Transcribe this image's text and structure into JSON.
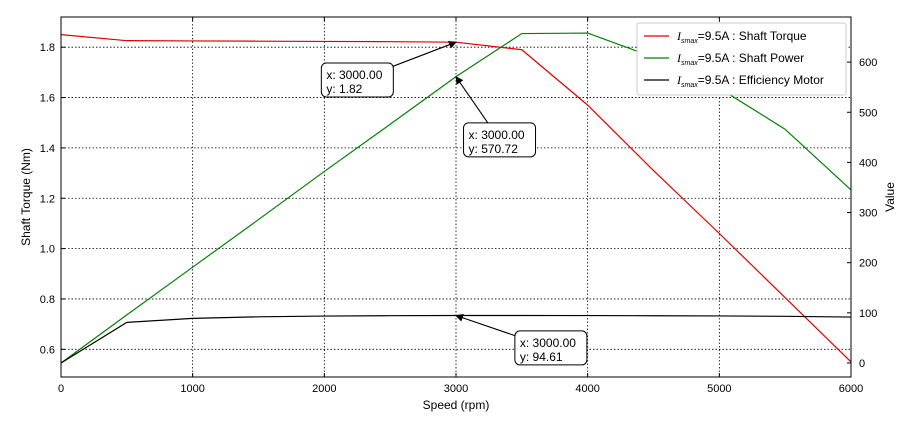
{
  "chart_data": {
    "type": "line",
    "xlabel": "Speed  (rpm)",
    "ylabel_left": "Shaft Torque  (Nm)",
    "ylabel_right": "Value",
    "xlim": [
      0,
      6000
    ],
    "ylim_left": [
      0.49,
      1.92
    ],
    "ylim_right": [
      -28,
      690
    ],
    "x_ticks": [
      0,
      1000,
      2000,
      3000,
      4000,
      5000,
      6000
    ],
    "y_ticks_left": [
      0.6,
      0.8,
      1.0,
      1.2,
      1.4,
      1.6,
      1.8
    ],
    "y_ticks_right": [
      0,
      100,
      200,
      300,
      400,
      500,
      600
    ],
    "grid": true,
    "grid_style": "dotted",
    "legend_position": "top-right",
    "series": [
      {
        "name_math": "I",
        "name_sub": "smax",
        "name_rest": "=9.5A : Shaft Torque",
        "axis": "left",
        "color": "#e00000",
        "x": [
          0,
          500,
          1000,
          1500,
          2000,
          2500,
          3000,
          3500,
          4000,
          4500,
          5000,
          5500,
          6000
        ],
        "y": [
          1.85,
          1.826,
          1.825,
          1.824,
          1.823,
          1.822,
          1.82,
          1.79,
          1.57,
          1.31,
          1.06,
          0.805,
          0.55
        ]
      },
      {
        "name_math": "I",
        "name_sub": "smax",
        "name_rest": "=9.5A : Shaft Power",
        "axis": "right",
        "color": "#008000",
        "x": [
          0,
          500,
          1000,
          1500,
          2000,
          2500,
          3000,
          3500,
          4000,
          4500,
          5000,
          5500,
          6000
        ],
        "y": [
          0,
          96,
          191,
          286,
          382,
          476,
          571,
          657,
          658,
          610,
          548,
          466,
          345
        ]
      },
      {
        "name_math": "I",
        "name_sub": "smax",
        "name_rest": "=9.5A : Efficiency Motor",
        "axis": "right",
        "color": "#000000",
        "x": [
          0,
          500,
          1000,
          1500,
          2000,
          2500,
          3000,
          3500,
          4000,
          4500,
          5000,
          5500,
          6000
        ],
        "y": [
          0,
          81,
          89,
          92,
          93.5,
          94.3,
          94.61,
          94.6,
          94.5,
          94.2,
          93.8,
          93.0,
          91.5
        ]
      }
    ],
    "annotations": [
      {
        "x": 3000,
        "y": 1.82,
        "axis": "left",
        "line1": "x: 3000.00",
        "line2": "y: 1.82",
        "box_at_x": 2000,
        "box_at_y": 1.65
      },
      {
        "x": 3000,
        "y": 570.72,
        "axis": "right",
        "line1": "x: 3000.00",
        "line2": "y: 570.72",
        "box_at_x": 3080,
        "box_at_y": 435
      },
      {
        "x": 3000,
        "y": 94.61,
        "axis": "right",
        "line1": "x: 3000.00",
        "line2": "y: 94.61",
        "box_at_x": 3470,
        "box_at_y": 20
      }
    ]
  }
}
